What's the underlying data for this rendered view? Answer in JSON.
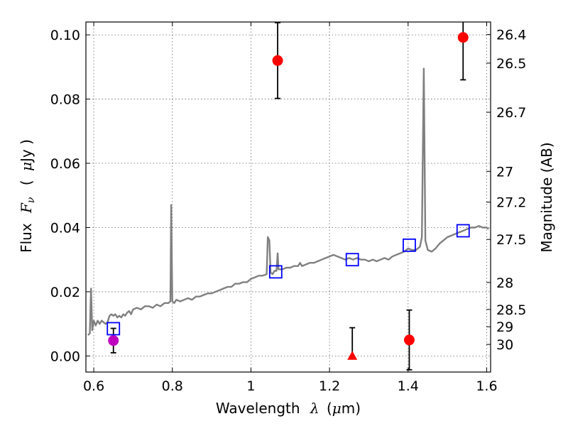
{
  "chart_data": {
    "type": "scatter",
    "xlabel": "Wavelength",
    "xlabel_symbol": "λ",
    "xlabel_unit_open": "(",
    "xlabel_unit_mu": "μ",
    "xlabel_unit_rest": "m)",
    "ylabel_prefix": "Flux",
    "ylabel_symbol": "F",
    "ylabel_subscript": "ν",
    "ylabel_unit_open": "(",
    "ylabel_unit_mu": "μ",
    "ylabel_unit_rest": "Jy )",
    "y2label": "Magnitude (AB)",
    "xlim": [
      0.58,
      1.61
    ],
    "ylim": [
      -0.005,
      0.104
    ],
    "grid": true,
    "x_ticks": [
      {
        "value": 0.6,
        "label": "0.6"
      },
      {
        "value": 0.8,
        "label": "0.8"
      },
      {
        "value": 1.0,
        "label": "1"
      },
      {
        "value": 1.2,
        "label": "1.2"
      },
      {
        "value": 1.4,
        "label": "1.4"
      },
      {
        "value": 1.6,
        "label": "1.6"
      }
    ],
    "y_ticks": [
      {
        "value": 0.0,
        "label": "0.00"
      },
      {
        "value": 0.02,
        "label": "0.02"
      },
      {
        "value": 0.04,
        "label": "0.04"
      },
      {
        "value": 0.06,
        "label": "0.06"
      },
      {
        "value": 0.08,
        "label": "0.08"
      },
      {
        "value": 0.1,
        "label": "0.10"
      }
    ],
    "y2_ticks": [
      {
        "label": "26.4",
        "flux": 0.1001
      },
      {
        "label": "26.5",
        "flux": 0.0912
      },
      {
        "label": "26.7",
        "flux": 0.0759
      },
      {
        "label": "27",
        "flux": 0.0575
      },
      {
        "label": "27.2",
        "flux": 0.0479
      },
      {
        "label": "27.5",
        "flux": 0.0363
      },
      {
        "label": "28",
        "flux": 0.0229
      },
      {
        "label": "28.5",
        "flux": 0.0145
      },
      {
        "label": "29",
        "flux": 0.0091
      },
      {
        "label": "30",
        "flux": 0.0036
      }
    ],
    "spectrum": {
      "color": "#808080",
      "points": [
        [
          0.585,
          0.0065
        ],
        [
          0.59,
          0.007
        ],
        [
          0.593,
          0.021
        ],
        [
          0.596,
          0.008
        ],
        [
          0.6,
          0.011
        ],
        [
          0.605,
          0.0095
        ],
        [
          0.61,
          0.011
        ],
        [
          0.615,
          0.01
        ],
        [
          0.62,
          0.011
        ],
        [
          0.625,
          0.0105
        ],
        [
          0.63,
          0.01
        ],
        [
          0.635,
          0.0105
        ],
        [
          0.64,
          0.0125
        ],
        [
          0.645,
          0.013
        ],
        [
          0.65,
          0.0125
        ],
        [
          0.655,
          0.013
        ],
        [
          0.66,
          0.012
        ],
        [
          0.665,
          0.0125
        ],
        [
          0.67,
          0.012
        ],
        [
          0.675,
          0.013
        ],
        [
          0.68,
          0.0125
        ],
        [
          0.685,
          0.0135
        ],
        [
          0.69,
          0.014
        ],
        [
          0.695,
          0.013
        ],
        [
          0.7,
          0.0145
        ],
        [
          0.71,
          0.015
        ],
        [
          0.72,
          0.0145
        ],
        [
          0.73,
          0.0155
        ],
        [
          0.74,
          0.0155
        ],
        [
          0.75,
          0.015
        ],
        [
          0.76,
          0.016
        ],
        [
          0.77,
          0.0155
        ],
        [
          0.78,
          0.0165
        ],
        [
          0.79,
          0.0165
        ],
        [
          0.795,
          0.017
        ],
        [
          0.797,
          0.047
        ],
        [
          0.8,
          0.017
        ],
        [
          0.805,
          0.0165
        ],
        [
          0.81,
          0.0175
        ],
        [
          0.82,
          0.017
        ],
        [
          0.83,
          0.0175
        ],
        [
          0.84,
          0.018
        ],
        [
          0.85,
          0.0175
        ],
        [
          0.86,
          0.0185
        ],
        [
          0.87,
          0.0185
        ],
        [
          0.88,
          0.019
        ],
        [
          0.89,
          0.0195
        ],
        [
          0.9,
          0.0195
        ],
        [
          0.91,
          0.02
        ],
        [
          0.92,
          0.0205
        ],
        [
          0.93,
          0.021
        ],
        [
          0.94,
          0.0215
        ],
        [
          0.95,
          0.0215
        ],
        [
          0.96,
          0.0225
        ],
        [
          0.97,
          0.0225
        ],
        [
          0.98,
          0.023
        ],
        [
          0.99,
          0.023
        ],
        [
          1.0,
          0.024
        ],
        [
          1.01,
          0.0245
        ],
        [
          1.02,
          0.025
        ],
        [
          1.03,
          0.025
        ],
        [
          1.04,
          0.0255
        ],
        [
          1.043,
          0.037
        ],
        [
          1.047,
          0.036
        ],
        [
          1.05,
          0.026
        ],
        [
          1.055,
          0.0255
        ],
        [
          1.06,
          0.0265
        ],
        [
          1.065,
          0.0265
        ],
        [
          1.068,
          0.032
        ],
        [
          1.07,
          0.027
        ],
        [
          1.08,
          0.027
        ],
        [
          1.09,
          0.0275
        ],
        [
          1.1,
          0.0275
        ],
        [
          1.11,
          0.028
        ],
        [
          1.12,
          0.028
        ],
        [
          1.125,
          0.029
        ],
        [
          1.13,
          0.028
        ],
        [
          1.14,
          0.0285
        ],
        [
          1.15,
          0.029
        ],
        [
          1.16,
          0.029
        ],
        [
          1.17,
          0.0295
        ],
        [
          1.18,
          0.03
        ],
        [
          1.19,
          0.0305
        ],
        [
          1.2,
          0.031
        ],
        [
          1.21,
          0.0315
        ],
        [
          1.22,
          0.031
        ],
        [
          1.23,
          0.0305
        ],
        [
          1.24,
          0.03
        ],
        [
          1.25,
          0.0305
        ],
        [
          1.26,
          0.03
        ],
        [
          1.27,
          0.0305
        ],
        [
          1.28,
          0.03
        ],
        [
          1.29,
          0.03
        ],
        [
          1.3,
          0.0295
        ],
        [
          1.31,
          0.03
        ],
        [
          1.32,
          0.0295
        ],
        [
          1.33,
          0.03
        ],
        [
          1.34,
          0.0305
        ],
        [
          1.35,
          0.03
        ],
        [
          1.36,
          0.031
        ],
        [
          1.37,
          0.0315
        ],
        [
          1.38,
          0.032
        ],
        [
          1.39,
          0.0325
        ],
        [
          1.4,
          0.0335
        ],
        [
          1.41,
          0.033
        ],
        [
          1.42,
          0.033
        ],
        [
          1.43,
          0.034
        ],
        [
          1.435,
          0.037
        ],
        [
          1.44,
          0.0895
        ],
        [
          1.444,
          0.036
        ],
        [
          1.45,
          0.033
        ],
        [
          1.46,
          0.0325
        ],
        [
          1.47,
          0.0335
        ],
        [
          1.48,
          0.035
        ],
        [
          1.49,
          0.036
        ],
        [
          1.5,
          0.037
        ],
        [
          1.51,
          0.0375
        ],
        [
          1.52,
          0.038
        ],
        [
          1.53,
          0.0385
        ],
        [
          1.54,
          0.039
        ],
        [
          1.55,
          0.0395
        ],
        [
          1.56,
          0.04
        ],
        [
          1.57,
          0.04
        ],
        [
          1.58,
          0.0405
        ],
        [
          1.59,
          0.04
        ],
        [
          1.6,
          0.04
        ],
        [
          1.605,
          0.0395
        ]
      ]
    },
    "series": [
      {
        "marker": "circle",
        "color": "#ff0000",
        "points": [
          {
            "x": 1.068,
            "y": 0.092,
            "err_low": 0.0118,
            "err_high": 0.0118
          },
          {
            "x": 1.54,
            "y": 0.0992,
            "err_low": 0.0132,
            "err_high": 0.0132
          },
          {
            "x": 1.403,
            "y": 0.005,
            "err_low": 0.0093,
            "err_high": 0.0093
          }
        ]
      },
      {
        "marker": "triangle",
        "color": "#ff0000",
        "points": [
          {
            "x": 1.258,
            "y": 0.0,
            "err_low": 0.0,
            "err_high": 0.0088
          }
        ]
      },
      {
        "marker": "circle",
        "color": "#bf00bf",
        "points": [
          {
            "x": 0.65,
            "y": 0.0048,
            "err_low": 0.0038,
            "err_high": 0.0038
          }
        ]
      },
      {
        "marker": "square-open",
        "color": "#0000ff",
        "points": [
          {
            "x": 0.65,
            "y": 0.0085
          },
          {
            "x": 1.063,
            "y": 0.0262
          },
          {
            "x": 1.258,
            "y": 0.03
          },
          {
            "x": 1.403,
            "y": 0.0345
          },
          {
            "x": 1.54,
            "y": 0.039
          }
        ]
      }
    ]
  }
}
